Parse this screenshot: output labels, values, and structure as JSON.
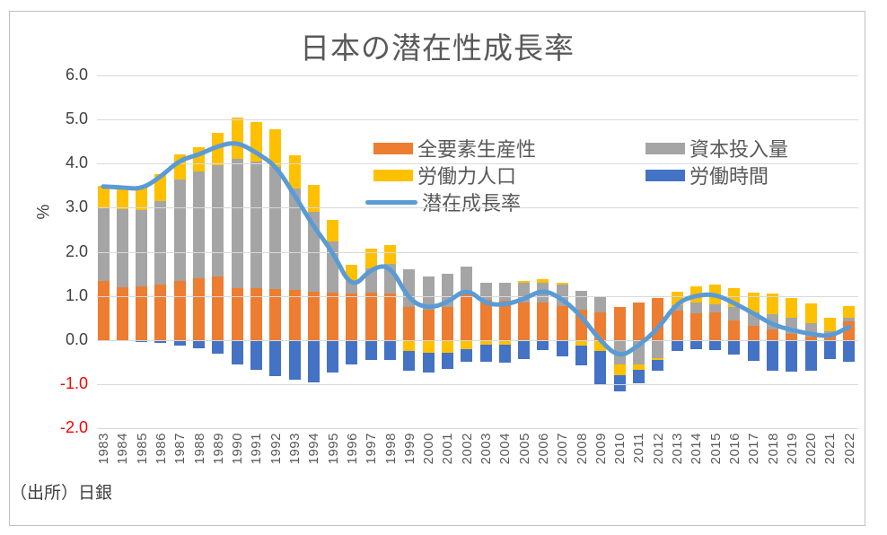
{
  "title": "日本の潜在性成長率",
  "source": "（出所）日銀",
  "y_axis": {
    "unit_label": "%"
  },
  "chart_data": {
    "type": "combo-stacked-bar-line",
    "title": "日本の潜在性成長率",
    "ylabel": "%",
    "ylim": [
      -2.0,
      6.0
    ],
    "grid": true,
    "legend_position": "inside-top-right",
    "y_ticks": [
      {
        "label": "6.0",
        "value": 6,
        "negative": false
      },
      {
        "label": "5.0",
        "value": 5,
        "negative": false
      },
      {
        "label": "4.0",
        "value": 4,
        "negative": false
      },
      {
        "label": "3.0",
        "value": 3,
        "negative": false
      },
      {
        "label": "2.0",
        "value": 2,
        "negative": false
      },
      {
        "label": "1.0",
        "value": 1,
        "negative": false
      },
      {
        "label": "0.0",
        "value": 0,
        "negative": false
      },
      {
        "label": "-1.0",
        "value": -1,
        "negative": true
      },
      {
        "label": "-2.0",
        "value": -2,
        "negative": true
      }
    ],
    "categories": [
      "1983",
      "1984",
      "1985",
      "1986",
      "1987",
      "1988",
      "1989",
      "1990",
      "1991",
      "1992",
      "1993",
      "1994",
      "1995",
      "1996",
      "1997",
      "1998",
      "1999",
      "2000",
      "2001",
      "2002",
      "2003",
      "2004",
      "2005",
      "2006",
      "2007",
      "2008",
      "2009",
      "2010",
      "2011",
      "2012",
      "2013",
      "2014",
      "2015",
      "2016",
      "2017",
      "2018",
      "2019",
      "2020",
      "2021",
      "2022"
    ],
    "series": [
      {
        "name": "全要素生産性",
        "type": "bar",
        "color": "#ED7D31",
        "values": [
          1.35,
          1.2,
          1.22,
          1.27,
          1.34,
          1.4,
          1.45,
          1.18,
          1.17,
          1.15,
          1.13,
          1.1,
          1.08,
          1.05,
          1.07,
          1.05,
          0.75,
          0.7,
          0.75,
          1.1,
          0.92,
          0.9,
          0.85,
          0.85,
          0.78,
          0.7,
          0.63,
          0.75,
          0.85,
          0.95,
          0.68,
          0.6,
          0.62,
          0.45,
          0.32,
          0.25,
          0.15,
          0.08,
          0.1,
          0.42
        ]
      },
      {
        "name": "資本投入量",
        "type": "bar",
        "color": "#A5A5A5",
        "values": [
          1.65,
          1.77,
          1.73,
          1.88,
          2.3,
          2.42,
          2.52,
          2.93,
          2.88,
          2.78,
          2.3,
          1.8,
          1.15,
          0.3,
          0.55,
          0.68,
          0.85,
          0.75,
          0.76,
          0.56,
          0.38,
          0.4,
          0.45,
          0.45,
          0.48,
          0.42,
          0.35,
          -0.55,
          -0.55,
          -0.4,
          0.12,
          0.25,
          0.2,
          0.3,
          0.32,
          0.34,
          0.36,
          0.3,
          0.1,
          0.08
        ]
      },
      {
        "name": "労働力人口",
        "type": "bar",
        "color": "#FFC000",
        "values": [
          0.5,
          0.52,
          0.52,
          0.62,
          0.56,
          0.56,
          0.73,
          0.93,
          0.88,
          0.85,
          0.76,
          0.62,
          0.5,
          0.35,
          0.45,
          0.43,
          -0.25,
          -0.28,
          -0.28,
          -0.2,
          -0.1,
          -0.1,
          0.05,
          0.08,
          0.05,
          -0.12,
          -0.25,
          -0.25,
          -0.12,
          -0.05,
          0.3,
          0.37,
          0.44,
          0.42,
          0.44,
          0.46,
          0.44,
          0.46,
          0.3,
          0.28
        ]
      },
      {
        "name": "労働時間",
        "type": "bar",
        "color": "#4472C4",
        "values": [
          -0.02,
          -0.03,
          -0.05,
          -0.07,
          -0.12,
          -0.18,
          -0.3,
          -0.55,
          -0.68,
          -0.82,
          -0.9,
          -0.95,
          -0.73,
          -0.55,
          -0.45,
          -0.45,
          -0.45,
          -0.45,
          -0.38,
          -0.28,
          -0.38,
          -0.4,
          -0.42,
          -0.23,
          -0.37,
          -0.45,
          -0.75,
          -0.35,
          -0.3,
          -0.25,
          -0.25,
          -0.2,
          -0.22,
          -0.33,
          -0.47,
          -0.7,
          -0.72,
          -0.7,
          -0.42,
          -0.48
        ]
      },
      {
        "name": "潜在成長率",
        "type": "line",
        "color": "#5B9BD5",
        "values": [
          3.48,
          3.46,
          3.42,
          3.7,
          4.08,
          4.2,
          4.4,
          4.49,
          4.25,
          3.96,
          3.29,
          2.57,
          2.0,
          1.15,
          1.62,
          1.71,
          0.9,
          0.72,
          0.85,
          1.18,
          0.82,
          0.8,
          0.93,
          1.15,
          0.94,
          0.55,
          -0.02,
          -0.4,
          -0.12,
          0.25,
          0.85,
          1.02,
          1.04,
          0.84,
          0.61,
          0.35,
          0.23,
          0.14,
          0.08,
          0.3
        ]
      }
    ],
    "colors": {
      "grid": "#D9D9D9",
      "text": "#595959",
      "negative_tick": "#FF0000"
    }
  }
}
